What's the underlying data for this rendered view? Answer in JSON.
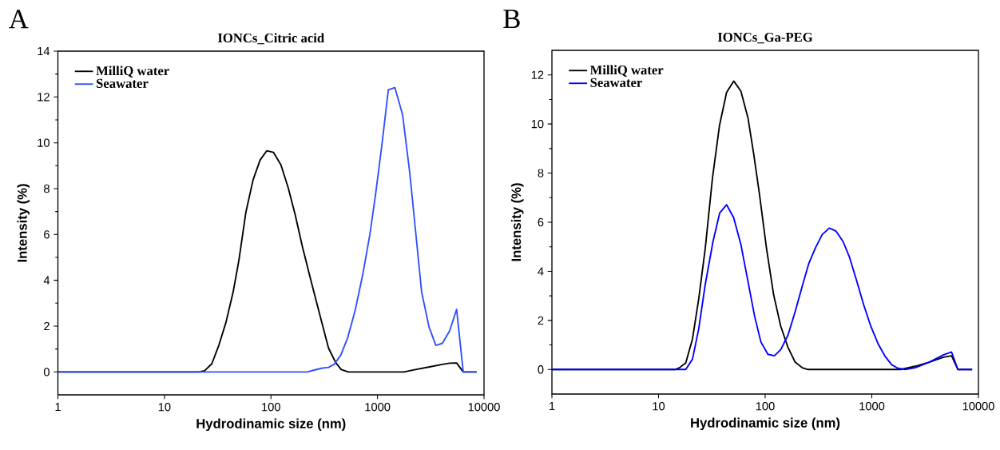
{
  "chart_data": [
    {
      "type": "line",
      "title": "IONCs_Citric acid",
      "xlabel": "Hydrodinamic size (nm)",
      "ylabel": "Intensity (%)",
      "annotations": [
        "A"
      ],
      "log": "x",
      "xlim": [
        1,
        10000
      ],
      "xticks": [
        1,
        10,
        100,
        1000,
        10000
      ],
      "ylim": [
        -1,
        14
      ],
      "yticks": [
        0,
        2,
        4,
        6,
        8,
        10,
        12,
        14
      ],
      "legend": "top left",
      "grid": false,
      "marker": "none",
      "line_style": "solid",
      "series": [
        {
          "name": "MilliQ water",
          "color": "#000000",
          "x": [
            1,
            21,
            23.8,
            27.8,
            32.4,
            37.8,
            44.1,
            49.9,
            58.2,
            67.9,
            79.1,
            91.2,
            105.7,
            124,
            145,
            169,
            197,
            230,
            268,
            307,
            347,
            405,
            457,
            533,
            1774,
            2270,
            3085,
            4070,
            4750,
            5530,
            6380,
            8520
          ],
          "values": [
            0,
            0,
            0.05,
            0.35,
            1.16,
            2.16,
            3.48,
            4.85,
            6.98,
            8.38,
            9.25,
            9.65,
            9.58,
            9.04,
            8.04,
            6.85,
            5.48,
            4.23,
            3.04,
            1.98,
            1.04,
            0.41,
            0.1,
            0,
            0,
            0.1,
            0.22,
            0.33,
            0.38,
            0.39,
            0,
            0
          ]
        },
        {
          "name": "Seawater",
          "color": "#2f4fff",
          "x": [
            1,
            219,
            255,
            297,
            347,
            392,
            452,
            524,
            615,
            726,
            847,
            958,
            1096,
            1264,
            1456,
            1719,
            2004,
            2268,
            2597,
            3050,
            3532,
            4070,
            4750,
            5530,
            6380,
            8520
          ],
          "values": [
            0,
            0,
            0.08,
            0.16,
            0.2,
            0.33,
            0.73,
            1.48,
            2.66,
            4.23,
            5.98,
            7.73,
            9.85,
            12.31,
            12.41,
            11.23,
            8.73,
            6.23,
            3.48,
            1.95,
            1.16,
            1.25,
            1.79,
            2.73,
            0,
            0
          ]
        }
      ]
    },
    {
      "type": "line",
      "title": "IONCs_Ga-PEG",
      "xlabel": "Hydrodinamic size (nm)",
      "ylabel": "Intensity (%)",
      "annotations": [
        "B"
      ],
      "log": "x",
      "xlim": [
        1,
        10000
      ],
      "xticks": [
        1,
        10,
        100,
        1000,
        10000
      ],
      "ylim": [
        -1,
        13
      ],
      "yticks": [
        0,
        2,
        4,
        6,
        8,
        10,
        12
      ],
      "legend": "top left",
      "grid": false,
      "marker": "none",
      "line_style": "solid",
      "series": [
        {
          "name": "MilliQ water",
          "color": "#000000",
          "x": [
            1,
            14.3,
            15.7,
            18.0,
            20.8,
            23.8,
            27.4,
            32.0,
            37.3,
            43.5,
            50.7,
            59.2,
            69.1,
            78.1,
            88.4,
            103,
            120,
            140,
            164,
            191,
            223,
            252,
            1871,
            2546,
            3461,
            4710,
            5600,
            6420,
            8740
          ],
          "values": [
            0,
            0,
            0.07,
            0.27,
            1.24,
            2.87,
            4.92,
            7.78,
            9.94,
            11.29,
            11.75,
            11.34,
            10.23,
            8.77,
            7.14,
            4.92,
            3.05,
            1.76,
            0.89,
            0.3,
            0.07,
            0,
            0,
            0.13,
            0.3,
            0.5,
            0.56,
            0,
            0
          ]
        },
        {
          "name": "Seawater",
          "color": "#0000ff",
          "x": [
            1,
            18.0,
            20.8,
            23.8,
            27.4,
            32.4,
            37.5,
            43.5,
            50.7,
            59.2,
            69.1,
            79.6,
            91.2,
            106,
            122,
            140,
            164,
            191,
            223,
            257,
            298,
            343,
            400,
            461,
            538,
            616,
            719,
            839,
            979,
            1142,
            1331,
            1535,
            1758,
            2050,
            2546,
            3461,
            4710,
            5600,
            6420,
            8740
          ],
          "values": [
            0,
            0,
            0.42,
            1.65,
            3.46,
            5.21,
            6.38,
            6.71,
            6.18,
            5.09,
            3.57,
            2.17,
            1.12,
            0.62,
            0.56,
            0.81,
            1.41,
            2.35,
            3.4,
            4.33,
            4.98,
            5.5,
            5.76,
            5.64,
            5.21,
            4.59,
            3.63,
            2.64,
            1.76,
            1.06,
            0.54,
            0.19,
            0.05,
            0,
            0.07,
            0.3,
            0.6,
            0.71,
            0,
            0
          ]
        }
      ]
    }
  ]
}
